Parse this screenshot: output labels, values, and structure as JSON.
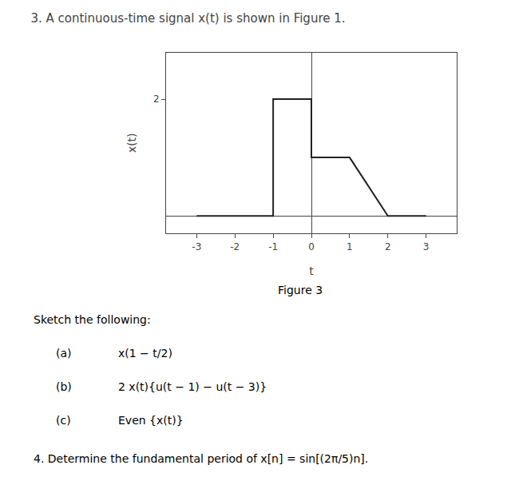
{
  "chart_data": {
    "type": "line",
    "title": "3. A continuous-time signal x(t) is shown in Figure 1.",
    "x_label": "t",
    "y_label": "x(t)",
    "x": [
      -3,
      -1,
      -1,
      0,
      0,
      1,
      2,
      3
    ],
    "values": [
      0,
      0,
      2,
      2,
      1,
      1,
      0,
      0
    ],
    "color": "#222222",
    "xlim": [
      -3.8,
      3.8
    ],
    "xticks": [
      -3,
      -2,
      -1,
      0,
      1,
      2,
      3
    ],
    "ylim": [
      -0.3,
      2.8
    ],
    "yticks": [
      2
    ],
    "grid": false,
    "annotations": [
      "Figure 3",
      "Sketch the following:",
      "(a)",
      "x(1 − t/2)",
      "(b)",
      "2 x(t){u(t − 1) − u(t − 3)}",
      "(c)",
      "Even {x(t)}",
      "4. Determine the fundamental period of x[n] = sin[(2π/5)n]."
    ]
  }
}
